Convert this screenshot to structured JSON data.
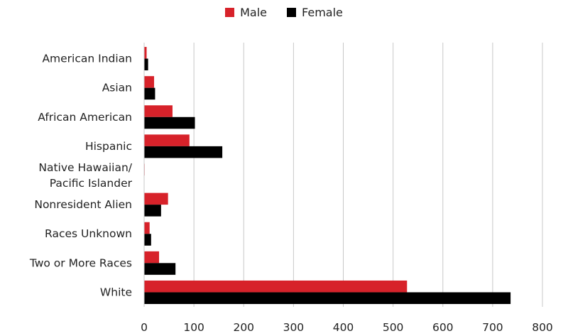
{
  "chart_data": {
    "type": "bar",
    "orientation": "horizontal",
    "categories": [
      "American Indian",
      "Asian",
      "African American",
      "Hispanic",
      "Native Hawaiian/ Pacific Islander",
      "Nonresident Alien",
      "Races Unknown",
      "Two or More Races",
      "White"
    ],
    "series": [
      {
        "name": "Male",
        "color": "#d7222a",
        "values": [
          5,
          20,
          57,
          91,
          1,
          48,
          11,
          30,
          528
        ]
      },
      {
        "name": "Female",
        "color": "#000000",
        "values": [
          8,
          22,
          102,
          157,
          0,
          34,
          14,
          63,
          736
        ]
      }
    ],
    "xlim": [
      0,
      800
    ],
    "xticks": [
      "0",
      "100",
      "200",
      "300",
      "400",
      "500",
      "600",
      "700",
      "800"
    ],
    "grid": "vertical",
    "legend": "top-center"
  }
}
